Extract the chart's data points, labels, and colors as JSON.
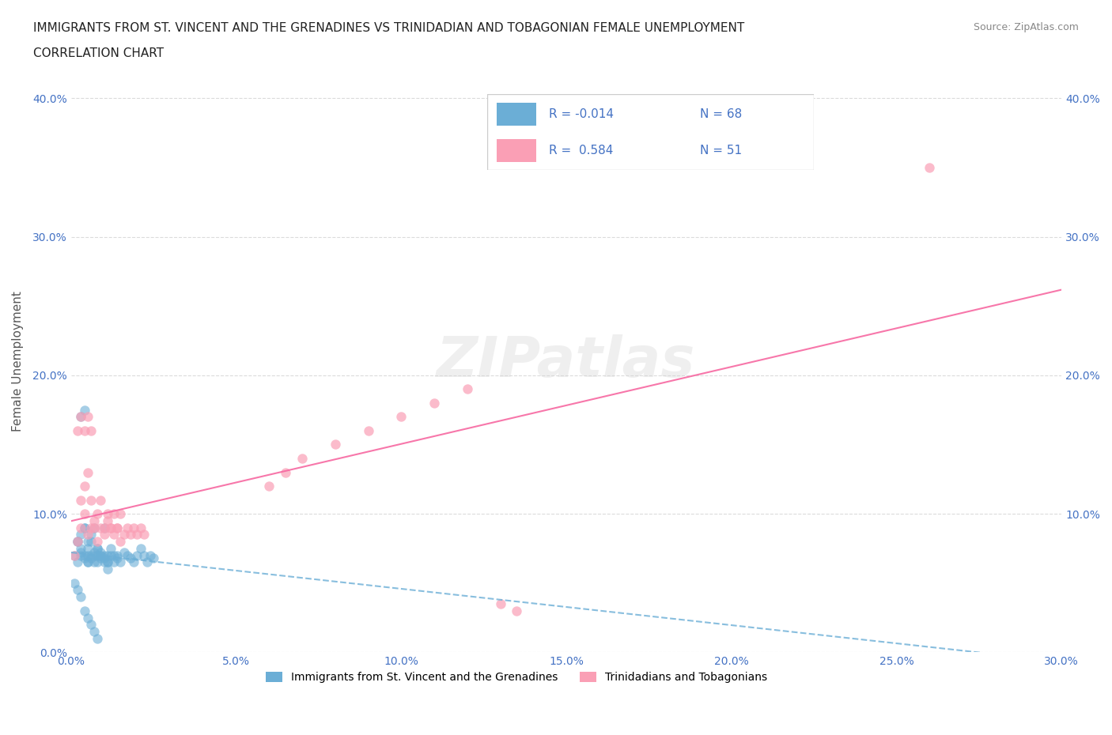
{
  "title_line1": "IMMIGRANTS FROM ST. VINCENT AND THE GRENADINES VS TRINIDADIAN AND TOBAGONIAN FEMALE UNEMPLOYMENT",
  "title_line2": "CORRELATION CHART",
  "source_text": "Source: ZipAtlas.com",
  "ylabel": "Female Unemployment",
  "xlabel": "",
  "xlim": [
    0.0,
    0.3
  ],
  "ylim": [
    0.0,
    0.42
  ],
  "xticks": [
    0.0,
    0.05,
    0.1,
    0.15,
    0.2,
    0.25,
    0.3
  ],
  "xticklabels": [
    "0.0%",
    "5.0%",
    "10.0%",
    "15.0%",
    "20.0%",
    "25.0%",
    "30.0%"
  ],
  "yticks": [
    0.0,
    0.1,
    0.2,
    0.3,
    0.4
  ],
  "yticklabels": [
    "0.0%",
    "10.0%",
    "20.0%",
    "30.0%",
    "40.0%"
  ],
  "right_yticks": [
    0.1,
    0.2,
    0.3,
    0.4
  ],
  "right_yticklabels": [
    "10.0%",
    "20.0%",
    "30.0%",
    "40.0%"
  ],
  "legend_r1": "R = -0.014",
  "legend_n1": "N = 68",
  "legend_r2": "R =  0.584",
  "legend_n2": "N = 51",
  "color_blue": "#6baed6",
  "color_pink": "#fa9fb5",
  "color_blue_line": "#6baed6",
  "color_pink_line": "#f768a1",
  "color_title": "#4472c4",
  "color_axis_label": "#555555",
  "color_tick_label": "#4472c4",
  "color_grid": "#cccccc",
  "watermark": "ZIPatlas",
  "blue_x": [
    0.001,
    0.002,
    0.002,
    0.003,
    0.003,
    0.003,
    0.004,
    0.004,
    0.004,
    0.005,
    0.005,
    0.005,
    0.006,
    0.006,
    0.007,
    0.007,
    0.008,
    0.008,
    0.009,
    0.009,
    0.01,
    0.01,
    0.011,
    0.011,
    0.012,
    0.013,
    0.014,
    0.015,
    0.016,
    0.017,
    0.018,
    0.019,
    0.02,
    0.021,
    0.022,
    0.023,
    0.024,
    0.025,
    0.003,
    0.004,
    0.005,
    0.006,
    0.007,
    0.008,
    0.009,
    0.01,
    0.011,
    0.012,
    0.013,
    0.014,
    0.001,
    0.002,
    0.003,
    0.004,
    0.005,
    0.006,
    0.007,
    0.008,
    0.002,
    0.003,
    0.004,
    0.005,
    0.006,
    0.007,
    0.008,
    0.009,
    0.01,
    0.011
  ],
  "blue_y": [
    0.07,
    0.065,
    0.08,
    0.07,
    0.075,
    0.072,
    0.068,
    0.07,
    0.09,
    0.065,
    0.075,
    0.07,
    0.068,
    0.08,
    0.072,
    0.07,
    0.065,
    0.075,
    0.07,
    0.072,
    0.068,
    0.09,
    0.07,
    0.065,
    0.075,
    0.07,
    0.068,
    0.065,
    0.072,
    0.07,
    0.068,
    0.065,
    0.07,
    0.075,
    0.07,
    0.065,
    0.07,
    0.068,
    0.17,
    0.175,
    0.065,
    0.07,
    0.065,
    0.07,
    0.068,
    0.07,
    0.065,
    0.07,
    0.065,
    0.07,
    0.05,
    0.045,
    0.04,
    0.03,
    0.025,
    0.02,
    0.015,
    0.01,
    0.08,
    0.085,
    0.09,
    0.08,
    0.085,
    0.09,
    0.075,
    0.07,
    0.065,
    0.06
  ],
  "pink_x": [
    0.001,
    0.002,
    0.003,
    0.004,
    0.005,
    0.006,
    0.007,
    0.008,
    0.009,
    0.01,
    0.011,
    0.012,
    0.013,
    0.014,
    0.015,
    0.016,
    0.017,
    0.018,
    0.019,
    0.02,
    0.021,
    0.022,
    0.003,
    0.004,
    0.005,
    0.006,
    0.007,
    0.008,
    0.009,
    0.01,
    0.011,
    0.012,
    0.013,
    0.014,
    0.015,
    0.002,
    0.003,
    0.004,
    0.005,
    0.006,
    0.13,
    0.135,
    0.26,
    0.06,
    0.065,
    0.07,
    0.08,
    0.09,
    0.1,
    0.11,
    0.12
  ],
  "pink_y": [
    0.07,
    0.08,
    0.09,
    0.1,
    0.085,
    0.09,
    0.095,
    0.08,
    0.09,
    0.085,
    0.095,
    0.09,
    0.085,
    0.09,
    0.08,
    0.085,
    0.09,
    0.085,
    0.09,
    0.085,
    0.09,
    0.085,
    0.11,
    0.12,
    0.13,
    0.11,
    0.09,
    0.1,
    0.11,
    0.09,
    0.1,
    0.09,
    0.1,
    0.09,
    0.1,
    0.16,
    0.17,
    0.16,
    0.17,
    0.16,
    0.035,
    0.03,
    0.35,
    0.12,
    0.13,
    0.14,
    0.15,
    0.16,
    0.17,
    0.18,
    0.19
  ]
}
